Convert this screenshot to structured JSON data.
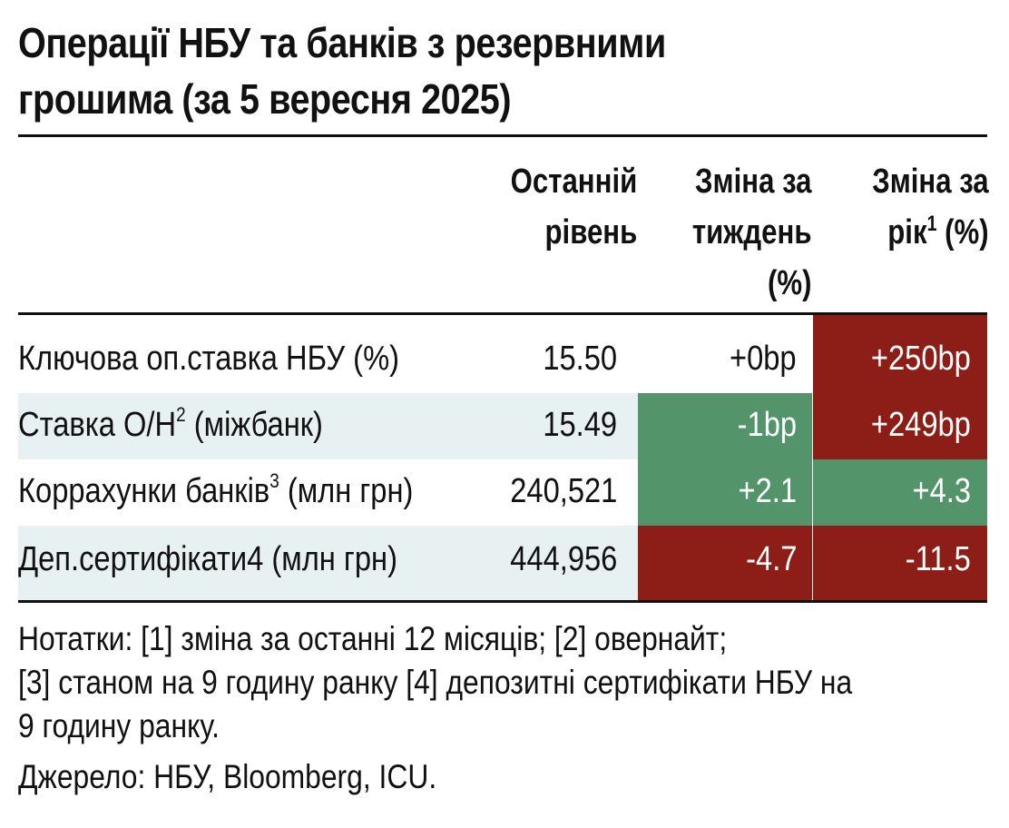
{
  "title": {
    "line1": "Операції НБУ та банків з резервними",
    "line2": "грошима (за 5 вересня 2025)"
  },
  "chart_data": {
    "type": "table",
    "columns": [
      {
        "line1": "Останній",
        "line2": "рівень"
      },
      {
        "line1": "Зміна за",
        "line2": "тиждень",
        "line3": "(%)"
      },
      {
        "line1": "Зміна за",
        "line2_pre": "рік",
        "line2_sup": "1",
        "line2_post": " (%)"
      }
    ],
    "rows": [
      {
        "label": "Ключова оп.ставка НБУ (%)",
        "label_sup": "",
        "label_post": "",
        "last": "15.50",
        "week": "+0bp",
        "year": "+250bp",
        "week_color": "",
        "year_color": "#8c1e17"
      },
      {
        "label": "Ставка О/Н",
        "label_sup": "2",
        "label_post": " (міжбанк)",
        "last": "15.49",
        "week": "-1bp",
        "year": "+249bp",
        "week_color": "#53946a",
        "year_color": "#8c1e17"
      },
      {
        "label": "Коррахунки банків",
        "label_sup": "3",
        "label_post": " (млн грн)",
        "last": "240,521",
        "week": "+2.1",
        "year": "+4.3",
        "week_color": "#53946a",
        "year_color": "#53946a"
      },
      {
        "label": "Деп.сертифікати4 (млн грн)",
        "label_sup": "",
        "label_post": "",
        "last": "444,956",
        "week": "-4.7",
        "year": "-11.5",
        "week_color": "#8c1e17",
        "year_color": "#8c1e17"
      }
    ]
  },
  "notes": {
    "line1": "Нотатки: [1] зміна за останні 12 місяців; [2] овернайт;",
    "line2": "[3] станом на 9 годину ранку [4] депозитні сертифікати НБУ на",
    "line3": "9 годину ранку."
  },
  "source": "Джерело: НБУ, Bloomberg, ICU.",
  "colors": {
    "positive_green": "#53946a",
    "negative_red": "#8c1e17",
    "shaded_row": "#e7f1f1"
  }
}
